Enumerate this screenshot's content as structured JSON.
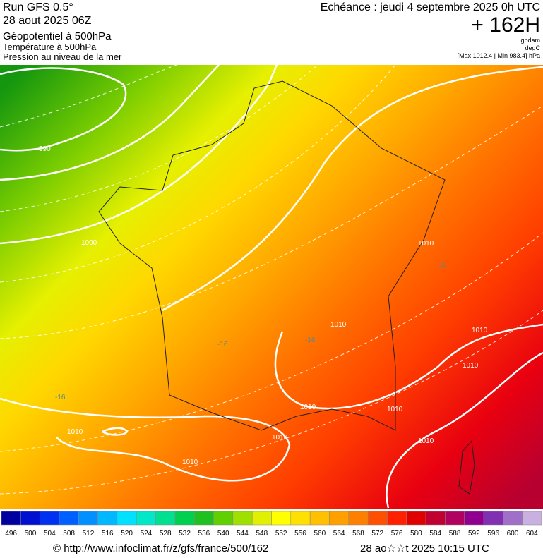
{
  "header": {
    "run": "Run GFS 0.5°",
    "date": "28 aout 2025 06Z",
    "field1": "Géopotentiel à 500hPa",
    "field2": "Température à 500hPa",
    "field3": "Pression au niveau de la mer",
    "echeance": "Echéance : jeudi 4 septembre 2025 0h UTC",
    "lead": "+ 162H",
    "unit1": "gpdam",
    "unit2": "degC",
    "range": "[Max 1012.4 | Min 983.4] hPa"
  },
  "map": {
    "contour_labels": [
      "990",
      "1000",
      "1010",
      "1010",
      "1010",
      "1010",
      "1010",
      "1010",
      "1010",
      "1010",
      "1010",
      "1010",
      "-16",
      "-16",
      "-16",
      "-16"
    ]
  },
  "colorbar": {
    "labels": [
      496,
      500,
      504,
      508,
      512,
      516,
      520,
      524,
      528,
      532,
      536,
      540,
      544,
      548,
      552,
      556,
      560,
      564,
      568,
      572,
      576,
      580,
      584,
      588,
      592,
      596,
      600,
      604
    ],
    "colors": [
      "#0000a0",
      "#0010d0",
      "#0030f0",
      "#0060ff",
      "#0090ff",
      "#00b8ff",
      "#00e0ff",
      "#00e8c8",
      "#00e090",
      "#00d050",
      "#20c020",
      "#60d000",
      "#a0e000",
      "#e0f000",
      "#ffff00",
      "#ffe000",
      "#ffc000",
      "#ffa000",
      "#ff8000",
      "#ff5000",
      "#ff2000",
      "#e00000",
      "#c00030",
      "#b00060",
      "#900090",
      "#8030b0",
      "#a070c8",
      "#c8b0e0"
    ]
  },
  "footer": {
    "url": "© http://www.infoclimat.fr/z/gfs/france/500/162",
    "timestamp": "28 ao☆☆t 2025 10:15 UTC"
  }
}
